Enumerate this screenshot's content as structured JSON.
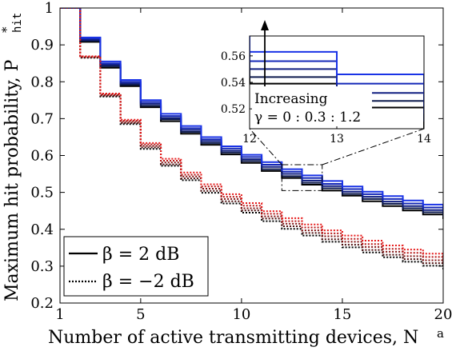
{
  "chart_data": {
    "type": "line",
    "step": true,
    "xlabel": "Number of active transmitting devices, N",
    "xlabel_sup": "a",
    "ylabel": "Maximum hit probability, P",
    "ylabel_sup": "*",
    "ylabel_sub": "hit",
    "xlim": [
      1,
      20
    ],
    "ylim": [
      0.2,
      1
    ],
    "xticks": [
      1,
      5,
      10,
      15,
      20
    ],
    "yticks": [
      0.2,
      0.3,
      0.4,
      0.5,
      0.6,
      0.7,
      0.8,
      0.9,
      1
    ],
    "grid": false,
    "x": [
      1,
      2,
      3,
      4,
      5,
      6,
      7,
      8,
      9,
      10,
      11,
      12,
      13,
      14,
      15,
      16,
      17,
      18,
      19,
      20
    ],
    "series_groups": [
      {
        "label": "β = 2 dB",
        "line_style": "solid",
        "gamma": [
          0,
          0.3,
          0.6,
          0.9,
          1.2
        ],
        "colors": [
          "#000000",
          "#0d1a4d",
          "#101f80",
          "#1428b8",
          "#1a33e6"
        ],
        "values": [
          [
            1.0,
            0.908,
            0.838,
            0.788,
            0.731,
            0.693,
            0.659,
            0.629,
            0.603,
            0.58,
            0.558,
            0.539,
            0.521,
            0.505,
            0.491,
            0.476,
            0.463,
            0.451,
            0.44,
            0.428
          ],
          [
            1.0,
            0.911,
            0.842,
            0.792,
            0.735,
            0.698,
            0.664,
            0.634,
            0.608,
            0.585,
            0.563,
            0.544,
            0.526,
            0.511,
            0.496,
            0.482,
            0.469,
            0.457,
            0.446,
            0.434
          ],
          [
            1.0,
            0.914,
            0.846,
            0.796,
            0.74,
            0.702,
            0.669,
            0.639,
            0.613,
            0.59,
            0.569,
            0.55,
            0.532,
            0.517,
            0.502,
            0.488,
            0.475,
            0.463,
            0.452,
            0.441
          ],
          [
            1.0,
            0.917,
            0.85,
            0.8,
            0.745,
            0.707,
            0.674,
            0.644,
            0.619,
            0.596,
            0.575,
            0.556,
            0.539,
            0.523,
            0.509,
            0.495,
            0.482,
            0.47,
            0.459,
            0.448
          ],
          [
            1.0,
            0.92,
            0.855,
            0.805,
            0.75,
            0.713,
            0.68,
            0.65,
            0.625,
            0.602,
            0.582,
            0.563,
            0.546,
            0.531,
            0.516,
            0.502,
            0.49,
            0.478,
            0.467,
            0.456
          ]
        ]
      },
      {
        "label": "β = −2 dB",
        "line_style": "dotted",
        "gamma": [
          0,
          0.3,
          0.6,
          0.9,
          1.2
        ],
        "colors": [
          "#000000",
          "#4d0d0d",
          "#801010",
          "#b81414",
          "#e61a1a"
        ],
        "values": [
          [
            1.0,
            0.865,
            0.76,
            0.685,
            0.618,
            0.572,
            0.533,
            0.499,
            0.47,
            0.445,
            0.422,
            0.401,
            0.383,
            0.366,
            0.351,
            0.337,
            0.324,
            0.312,
            0.301,
            0.291
          ],
          [
            1.0,
            0.866,
            0.762,
            0.688,
            0.622,
            0.576,
            0.538,
            0.504,
            0.476,
            0.451,
            0.429,
            0.408,
            0.39,
            0.373,
            0.358,
            0.344,
            0.331,
            0.319,
            0.308,
            0.298
          ],
          [
            1.0,
            0.867,
            0.764,
            0.691,
            0.626,
            0.581,
            0.543,
            0.51,
            0.482,
            0.457,
            0.435,
            0.415,
            0.397,
            0.381,
            0.366,
            0.352,
            0.339,
            0.327,
            0.316,
            0.306
          ],
          [
            1.0,
            0.868,
            0.766,
            0.694,
            0.63,
            0.586,
            0.548,
            0.516,
            0.488,
            0.464,
            0.442,
            0.422,
            0.405,
            0.389,
            0.374,
            0.36,
            0.347,
            0.336,
            0.325,
            0.315
          ],
          [
            1.0,
            0.869,
            0.768,
            0.697,
            0.634,
            0.591,
            0.554,
            0.522,
            0.495,
            0.471,
            0.449,
            0.43,
            0.413,
            0.397,
            0.383,
            0.369,
            0.356,
            0.345,
            0.334,
            0.324
          ]
        ]
      }
    ],
    "legend": {
      "position": "bottom-left",
      "entries": [
        {
          "label": "β = 2 dB",
          "line_style": "solid"
        },
        {
          "label": "β = −2 dB",
          "line_style": "dotted"
        }
      ]
    },
    "inset": {
      "xlim": [
        12,
        14
      ],
      "ylim": [
        0.505,
        0.575
      ],
      "xticks": [
        12,
        13,
        14
      ],
      "yticks": [
        0.52,
        0.54,
        0.56
      ],
      "annotation_line1": "Increasing",
      "annotation_line2": "γ = 0 : 0.3 : 1.2",
      "zoom_box": {
        "x": [
          12,
          14
        ],
        "y": [
          0.505,
          0.575
        ]
      }
    }
  }
}
